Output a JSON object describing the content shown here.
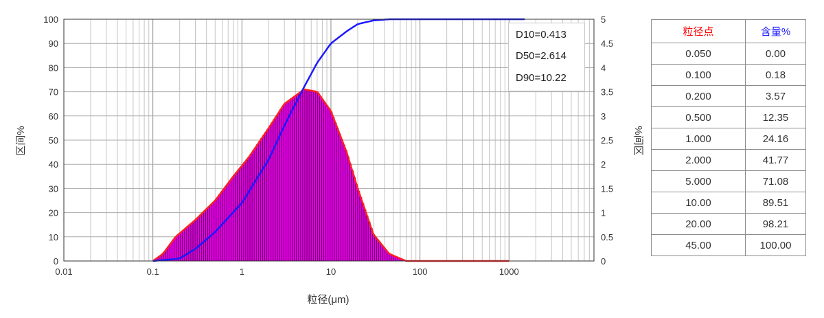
{
  "chart_data": {
    "type": "bar",
    "xlabel": "粒径(μm)",
    "ylabel_left": "区间%",
    "ylabel_right": "%间区",
    "x_scale": "log",
    "xlim": [
      0.01,
      9000
    ],
    "x_ticks": [
      "0.01",
      "0.1",
      "1",
      "10",
      "100",
      "1000"
    ],
    "ylim_left": [
      0,
      100
    ],
    "y_ticks_left": [
      "0",
      "10",
      "20",
      "30",
      "40",
      "50",
      "60",
      "70",
      "80",
      "90",
      "100"
    ],
    "ylim_right": [
      0,
      5
    ],
    "y_ticks_right": [
      "0",
      "0.5",
      "1",
      "1.5",
      "2",
      "2.5",
      "3",
      "3.5",
      "4",
      "4.5",
      "5"
    ],
    "grid": true,
    "series": [
      {
        "kind": "bars",
        "axis": "left",
        "color": "#e000e0",
        "outline_color": "#ff2020",
        "points": [
          [
            0.1,
            0
          ],
          [
            0.13,
            3
          ],
          [
            0.18,
            10
          ],
          [
            0.3,
            17
          ],
          [
            0.5,
            25
          ],
          [
            0.8,
            35
          ],
          [
            1.2,
            43
          ],
          [
            2,
            55
          ],
          [
            3,
            65
          ],
          [
            5,
            71
          ],
          [
            7,
            70
          ],
          [
            10,
            62
          ],
          [
            15,
            45
          ],
          [
            20,
            30
          ],
          [
            30,
            11
          ],
          [
            45,
            3
          ],
          [
            70,
            0
          ],
          [
            1000,
            0
          ]
        ]
      },
      {
        "kind": "line",
        "axis": "left",
        "color": "#1a1aff",
        "points": [
          [
            0.1,
            0
          ],
          [
            0.2,
            1
          ],
          [
            0.3,
            5
          ],
          [
            0.5,
            12
          ],
          [
            1,
            24
          ],
          [
            2,
            42
          ],
          [
            3,
            56
          ],
          [
            5,
            72
          ],
          [
            7,
            82
          ],
          [
            10,
            90
          ],
          [
            15,
            95
          ],
          [
            20,
            98
          ],
          [
            30,
            99.5
          ],
          [
            45,
            100
          ],
          [
            1500,
            100
          ]
        ]
      }
    ],
    "annotations": [
      "D10=0.413",
      "D50=2.614",
      "D90=10.22"
    ],
    "table": {
      "headers": [
        "粒径点",
        "含量%"
      ],
      "header_colors": [
        "#ff0000",
        "#1a1aff"
      ],
      "rows": [
        [
          "0.050",
          "0.00"
        ],
        [
          "0.100",
          "0.18"
        ],
        [
          "0.200",
          "3.57"
        ],
        [
          "0.500",
          "12.35"
        ],
        [
          "1.000",
          "24.16"
        ],
        [
          "2.000",
          "41.77"
        ],
        [
          "5.000",
          "71.08"
        ],
        [
          "10.00",
          "89.51"
        ],
        [
          "20.00",
          "98.21"
        ],
        [
          "45.00",
          "100.00"
        ]
      ]
    }
  }
}
